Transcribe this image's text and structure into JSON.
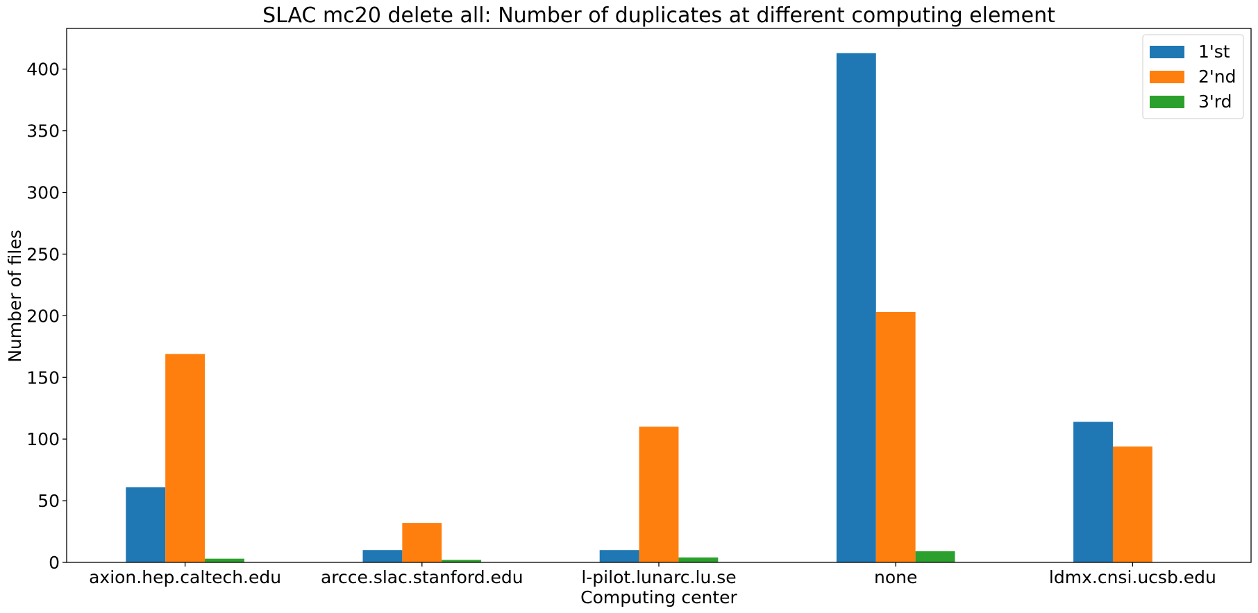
{
  "chart_data": {
    "type": "bar",
    "title": "SLAC mc20 delete all: Number of duplicates at different computing element",
    "xlabel": "Computing center",
    "ylabel": "Number of files",
    "categories": [
      "axion.hep.caltech.edu",
      "arcce.slac.stanford.edu",
      "l-pilot.lunarc.lu.se",
      "none",
      "ldmx.cnsi.ucsb.edu"
    ],
    "series": [
      {
        "name": "1'st",
        "color": "#1f77b4",
        "values": [
          61,
          10,
          10,
          413,
          114
        ]
      },
      {
        "name": "2'nd",
        "color": "#ff7f0e",
        "values": [
          169,
          32,
          110,
          203,
          94
        ]
      },
      {
        "name": "3'rd",
        "color": "#2ca02c",
        "values": [
          3,
          2,
          4,
          9,
          0
        ]
      }
    ],
    "ylim": [
      0,
      433
    ],
    "yticks": [
      0,
      50,
      100,
      150,
      200,
      250,
      300,
      350,
      400
    ],
    "grid": false,
    "legend_position": "top-right"
  }
}
